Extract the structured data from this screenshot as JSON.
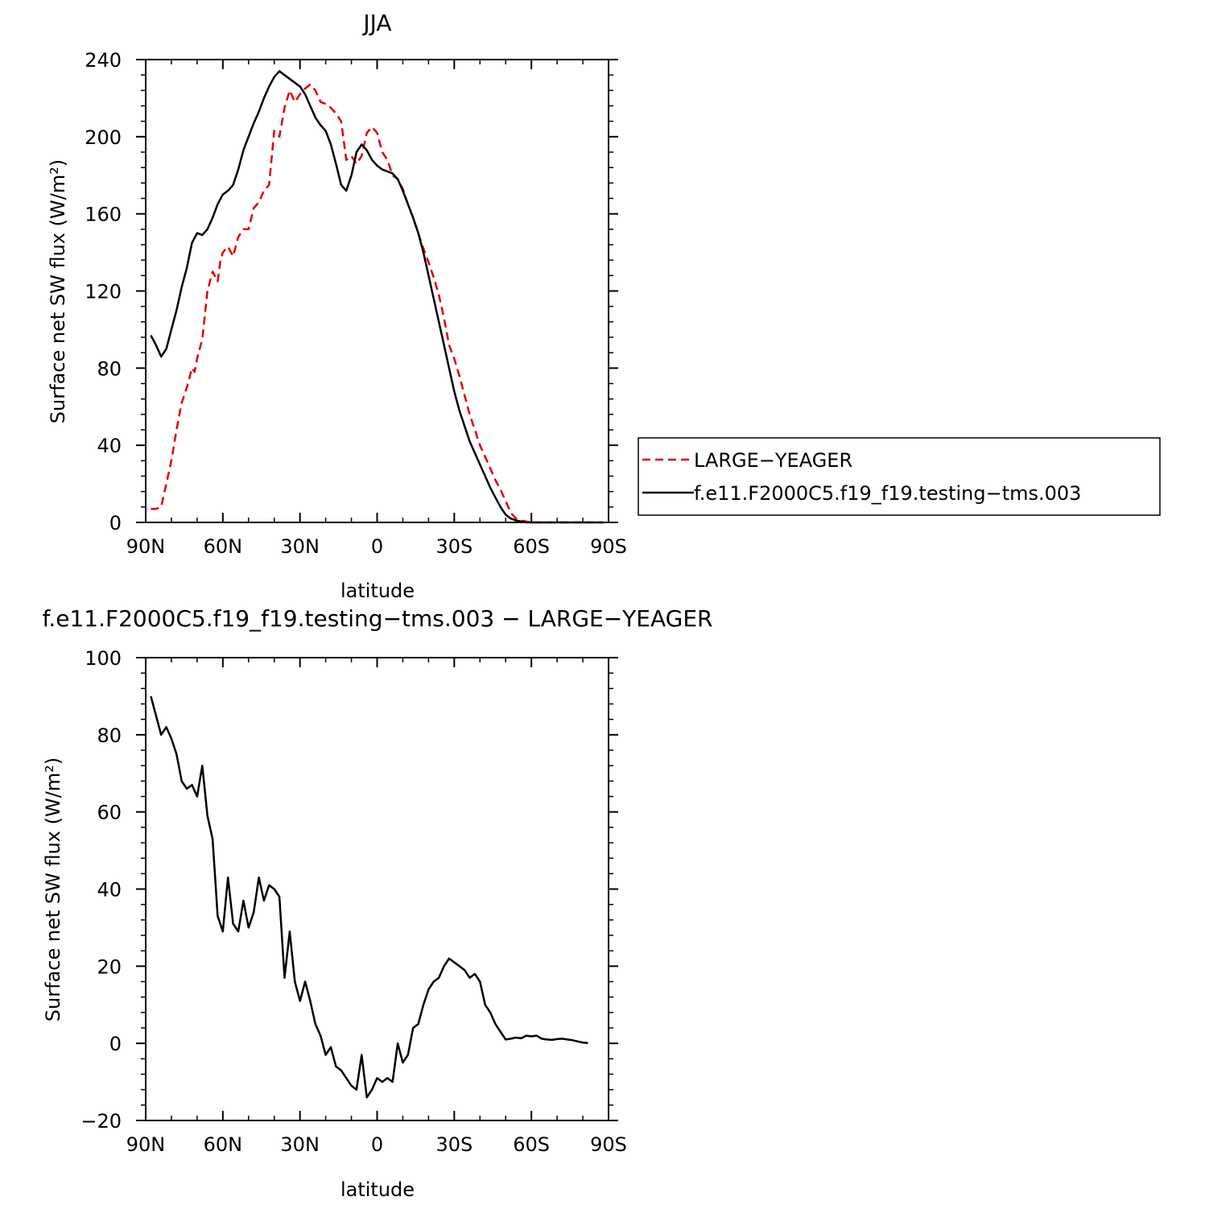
{
  "chart_data": [
    {
      "type": "line",
      "title": "JJA",
      "xlabel": "latitude",
      "ylabel": "Surface net SW flux (W/m²)",
      "xticks": [
        "90N",
        "60N",
        "30N",
        "0",
        "30S",
        "60S",
        "90S"
      ],
      "yticks": [
        "0",
        "40",
        "80",
        "120",
        "160",
        "200",
        "240"
      ],
      "xlim": [
        90,
        -90
      ],
      "ylim": [
        0,
        240
      ],
      "legend_position": "right",
      "series": [
        {
          "name": "LARGE−YEAGER",
          "color": "#e00000",
          "dash": "dashed",
          "x": [
            88,
            86,
            84,
            82,
            80,
            78,
            76,
            74,
            72,
            71,
            70,
            68,
            66,
            64,
            62,
            61,
            60,
            58,
            56,
            54,
            52,
            50,
            48,
            46,
            44,
            42,
            40,
            38,
            36,
            34,
            32,
            30,
            28,
            26,
            24,
            22,
            20,
            18,
            16,
            14,
            12,
            10,
            8,
            6,
            4,
            2,
            0,
            -2,
            -4,
            -6,
            -8,
            -10,
            -12,
            -14,
            -16,
            -18,
            -20,
            -22,
            -24,
            -26,
            -28,
            -30,
            -32,
            -34,
            -36,
            -38,
            -40,
            -42,
            -44,
            -46,
            -48,
            -50,
            -52,
            -54,
            -56,
            -58,
            -60,
            -62,
            -64,
            -66,
            -68,
            -70,
            -72,
            -74,
            -76,
            -78,
            -80,
            -82,
            -84,
            -86,
            -88
          ],
          "values": [
            7,
            7,
            8,
            20,
            32,
            48,
            62,
            70,
            80,
            78,
            85,
            95,
            120,
            130,
            125,
            135,
            140,
            143,
            138,
            148,
            152,
            152,
            163,
            166,
            172,
            175,
            203,
            200,
            215,
            224,
            218,
            222,
            225,
            227,
            224,
            218,
            217,
            215,
            212,
            208,
            188,
            190,
            186,
            190,
            202,
            205,
            202,
            192,
            188,
            180,
            178,
            173,
            165,
            158,
            150,
            142,
            135,
            127,
            118,
            106,
            92,
            85,
            76,
            66,
            56,
            48,
            40,
            34,
            28,
            22,
            17,
            11,
            5,
            2,
            1,
            0.5,
            0,
            0,
            0,
            0,
            0,
            0,
            0,
            0,
            0,
            0,
            0,
            0,
            0,
            0,
            0
          ]
        },
        {
          "name": "f.e11.F2000C5.f19_f19.testing−tms.003",
          "color": "#000000",
          "dash": "solid",
          "x": [
            88,
            86,
            84,
            82,
            80,
            78,
            76,
            74,
            72,
            70,
            68,
            66,
            64,
            62,
            60,
            58,
            56,
            54,
            52,
            50,
            48,
            46,
            44,
            42,
            40,
            38,
            36,
            34,
            32,
            30,
            28,
            26,
            24,
            22,
            20,
            18,
            16,
            14,
            12,
            10,
            8,
            6,
            4,
            2,
            0,
            -2,
            -4,
            -6,
            -8,
            -10,
            -12,
            -14,
            -16,
            -18,
            -20,
            -22,
            -24,
            -26,
            -28,
            -30,
            -32,
            -34,
            -36,
            -38,
            -40,
            -42,
            -44,
            -46,
            -48,
            -50,
            -52,
            -54,
            -56,
            -58,
            -60,
            -62,
            -64,
            -66,
            -68,
            -70,
            -72,
            -74,
            -76,
            -78,
            -80,
            -82,
            -84,
            -86,
            -88
          ],
          "values": [
            97,
            92,
            86,
            90,
            100,
            110,
            122,
            132,
            145,
            150,
            149,
            152,
            158,
            165,
            170,
            172,
            175,
            183,
            193,
            200,
            207,
            213,
            220,
            226,
            231,
            234,
            232,
            230,
            228,
            226,
            222,
            216,
            210,
            206,
            203,
            196,
            186,
            175,
            172,
            180,
            192,
            196,
            193,
            188,
            185,
            183,
            182,
            181,
            178,
            172,
            165,
            158,
            150,
            140,
            128,
            116,
            104,
            92,
            80,
            68,
            58,
            50,
            42,
            36,
            30,
            24,
            18,
            13,
            8,
            4,
            2,
            1,
            0.5,
            0,
            0,
            0,
            0,
            0,
            0,
            0,
            0,
            0,
            0,
            0,
            0,
            0,
            0,
            0,
            0
          ]
        }
      ]
    },
    {
      "type": "line",
      "title": "f.e11.F2000C5.f19_f19.testing−tms.003 − LARGE−YEAGER",
      "xlabel": "latitude",
      "ylabel": "Surface net SW flux (W/m²)",
      "xticks": [
        "90N",
        "60N",
        "30N",
        "0",
        "30S",
        "60S",
        "90S"
      ],
      "yticks": [
        "−20",
        "0",
        "20",
        "40",
        "60",
        "80",
        "100"
      ],
      "xlim": [
        90,
        -90
      ],
      "ylim": [
        -20,
        100
      ],
      "series": [
        {
          "name": "",
          "color": "#000000",
          "dash": "solid",
          "x": [
            88,
            86,
            84,
            82,
            80,
            78,
            76,
            74,
            72,
            70,
            68,
            66,
            64,
            62,
            60,
            58,
            56,
            54,
            52,
            50,
            48,
            46,
            44,
            42,
            40,
            38,
            36,
            34,
            32,
            30,
            28,
            26,
            24,
            22,
            20,
            18,
            16,
            14,
            12,
            10,
            8,
            6,
            4,
            2,
            0,
            -2,
            -4,
            -6,
            -8,
            -10,
            -12,
            -14,
            -16,
            -18,
            -20,
            -22,
            -24,
            -26,
            -28,
            -30,
            -32,
            -34,
            -36,
            -38,
            -40,
            -42,
            -44,
            -46,
            -48,
            -50,
            -52,
            -54,
            -56,
            -58,
            -60,
            -62,
            -64,
            -66,
            -68,
            -70,
            -72,
            -74,
            -76,
            -78,
            -80,
            -82
          ],
          "values": [
            90,
            85,
            80,
            82,
            79,
            75,
            68,
            66,
            67,
            64,
            72,
            59,
            53,
            33,
            29,
            43,
            31,
            29,
            37,
            30,
            34,
            43,
            37,
            41,
            40,
            38,
            17,
            29,
            16,
            11,
            16,
            11,
            5,
            2,
            -3,
            -1,
            -6,
            -7,
            -9,
            -11,
            -12,
            -3,
            -14,
            -12,
            -9,
            -10,
            -9,
            -10,
            0,
            -5,
            -3,
            4,
            5,
            10,
            14,
            16,
            17,
            20,
            22,
            21,
            20,
            19,
            17,
            18,
            16,
            10,
            8,
            5,
            3,
            1,
            1.2,
            1.5,
            1.3,
            2,
            1.8,
            2,
            1.2,
            1,
            0.9,
            1.1,
            1.2,
            1,
            0.8,
            0.5,
            0.2,
            0.1
          ]
        }
      ]
    }
  ]
}
